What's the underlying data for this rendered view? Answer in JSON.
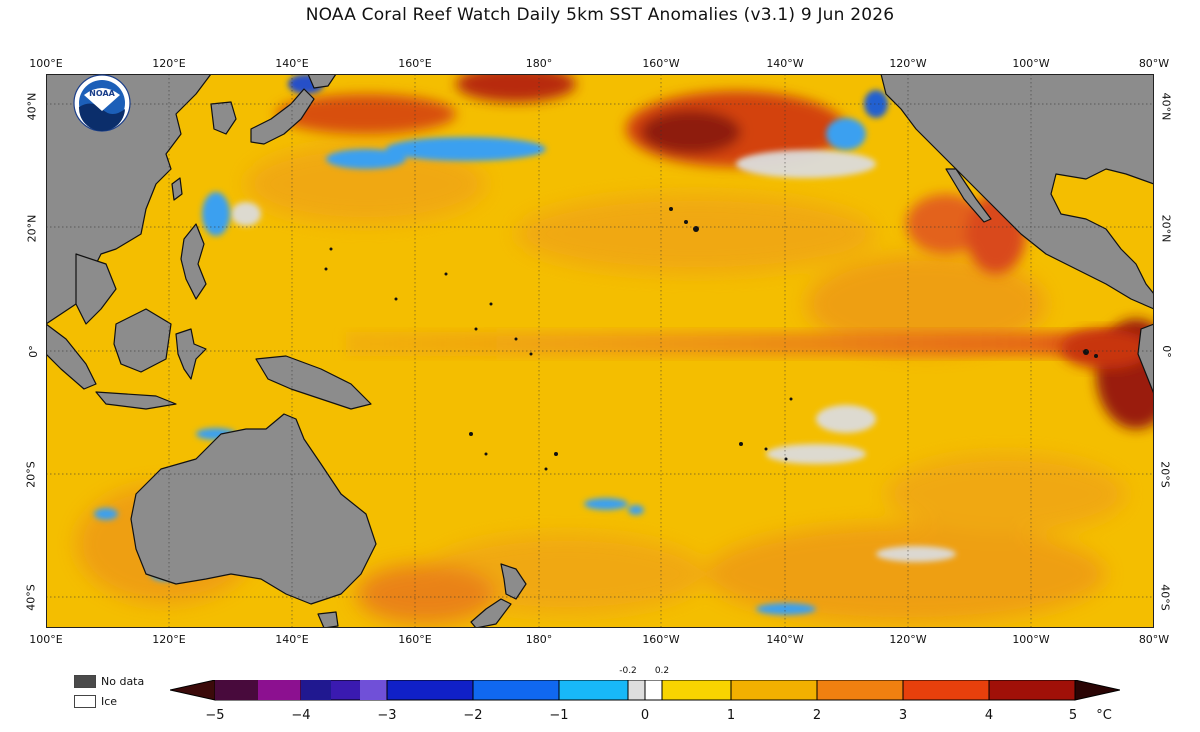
{
  "title": "NOAA Coral Reef Watch Daily 5km SST Anomalies  (v3.1)   9 Jun 2026",
  "logo_text": "NOAA",
  "lon_labels": [
    "100°E",
    "120°E",
    "140°E",
    "160°E",
    "180°",
    "160°W",
    "140°W",
    "120°W",
    "100°W",
    "80°W"
  ],
  "lat_labels": [
    "40°N",
    "20°N",
    "0°",
    "20°S",
    "40°S"
  ],
  "legend": {
    "no_data": "No data",
    "ice": "Ice"
  },
  "colorbar": {
    "tick_labels": [
      "−5",
      "−4",
      "−3",
      "−2",
      "−1",
      "0",
      "1",
      "2",
      "3",
      "4",
      "5"
    ],
    "small_labels": [
      "-0.2",
      "0.2"
    ],
    "unit": "°C",
    "range": [
      -5,
      5
    ]
  },
  "colors": {
    "land": "#8c8c8c",
    "ocean_base": "#f5c400",
    "equatorial_warm": "#ec8a1a",
    "hot": "#a41808",
    "cool": "#3aa0f0",
    "near_zero": "#dedede"
  }
}
